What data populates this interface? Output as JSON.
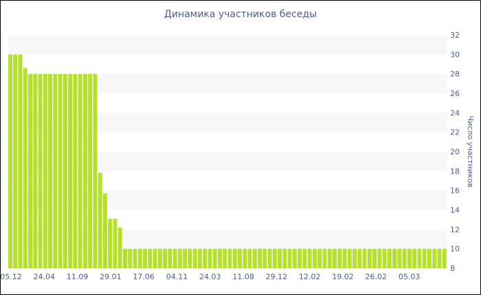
{
  "chart_data": {
    "type": "bar",
    "title": "Динамика участников беседы",
    "xlabel": "",
    "ylabel": "Число участников",
    "ylim": [
      8,
      32
    ],
    "ytick_step": 2,
    "grid": "alternating horizontal bands",
    "legend": "none",
    "bar_color": "#b5e02c",
    "band_color": "#f7f7f7",
    "text_color": "#4b5d8f",
    "x_tick_labels": [
      "05.12",
      "24.04",
      "11.09",
      "29.01",
      "17.06",
      "04.11",
      "24.03",
      "11.08",
      "29.12",
      "12.02",
      "19.02",
      "26.02",
      "05.03"
    ],
    "values": [
      30,
      30,
      30,
      28.6,
      28,
      28,
      28,
      28,
      28,
      28,
      28,
      28,
      28,
      28,
      28,
      28,
      28,
      28,
      17.8,
      15.7,
      13.1,
      13.1,
      12.2,
      10,
      10,
      10,
      10,
      10,
      10,
      10,
      10,
      10,
      10,
      10,
      10,
      10,
      10,
      10,
      10,
      10,
      10,
      10,
      10,
      10,
      10,
      10,
      10,
      10,
      10,
      10,
      10,
      10,
      10,
      10,
      10,
      10,
      10,
      10,
      10,
      10,
      10,
      10,
      10,
      10,
      10,
      10,
      10,
      10,
      10,
      10,
      10,
      10,
      10,
      10,
      10,
      10,
      10,
      10,
      10,
      10,
      10,
      10,
      10,
      10,
      10,
      10,
      10,
      10
    ]
  }
}
